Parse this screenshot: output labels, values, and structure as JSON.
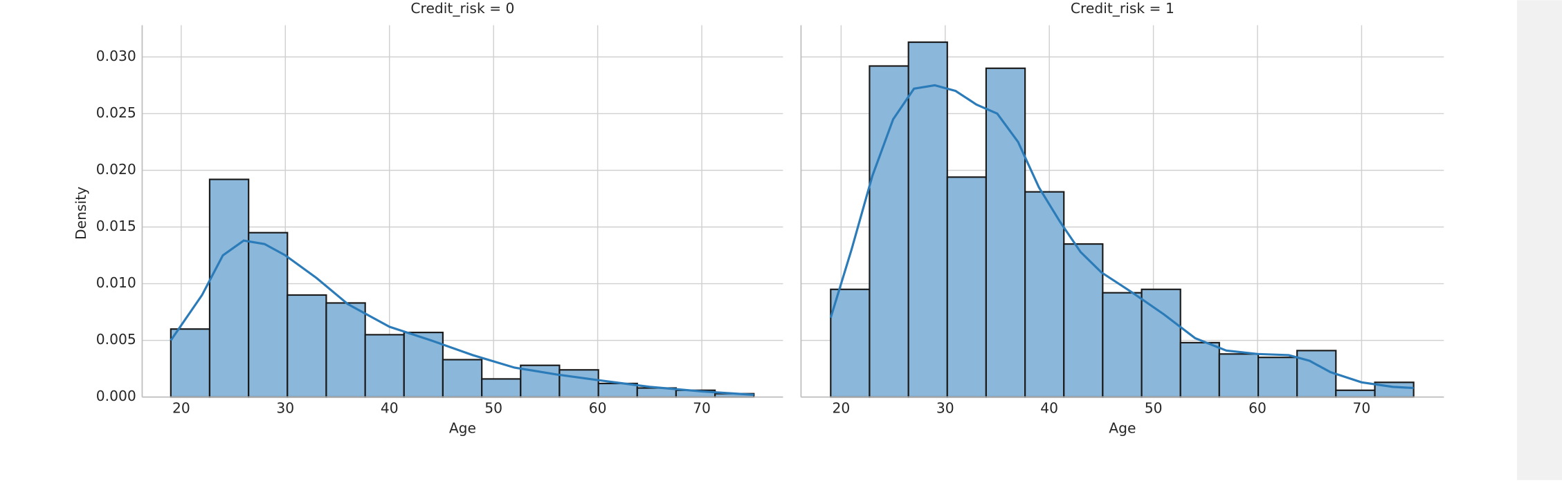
{
  "chart_data": [
    {
      "type": "histogram",
      "title": "Credit_risk = 0",
      "xlabel": "Age",
      "ylabel": "Density",
      "bins": [
        19,
        22.73,
        26.47,
        30.2,
        33.93,
        37.67,
        41.4,
        45.13,
        48.87,
        52.6,
        56.33,
        60.07,
        63.8,
        67.53,
        71.27,
        75
      ],
      "values": [
        0.006,
        0.0192,
        0.0145,
        0.009,
        0.0083,
        0.0055,
        0.0057,
        0.0033,
        0.0016,
        0.0028,
        0.0024,
        0.0012,
        0.0008,
        0.0006,
        0.0003
      ],
      "color": "#8ab7da",
      "edgecolor": "#1a1a1a",
      "kde": {
        "color": "#2b7bb9",
        "x": [
          19,
          22,
          24,
          26,
          28,
          30,
          33,
          36,
          40,
          44,
          48,
          52,
          56,
          60,
          65,
          70,
          75
        ],
        "values": [
          0.005,
          0.009,
          0.0125,
          0.0138,
          0.0135,
          0.0125,
          0.0105,
          0.0082,
          0.0062,
          0.005,
          0.0037,
          0.0026,
          0.002,
          0.0015,
          0.0009,
          0.0005,
          0.0002
        ]
      },
      "xlim": [
        16.25,
        77.8
      ],
      "xticks": [
        20,
        30,
        40,
        50,
        60,
        70
      ],
      "ylim": [
        0,
        0.0328
      ],
      "yticks": [
        {
          "value": 0,
          "label": "0.000"
        },
        {
          "value": 0.005,
          "label": "0.005"
        },
        {
          "value": 0.01,
          "label": "0.010"
        },
        {
          "value": 0.015,
          "label": "0.015"
        },
        {
          "value": 0.02,
          "label": "0.020"
        },
        {
          "value": 0.025,
          "label": "0.025"
        },
        {
          "value": 0.03,
          "label": "0.030"
        }
      ],
      "grid": true
    },
    {
      "type": "histogram",
      "title": "Credit_risk = 1",
      "xlabel": "Age",
      "bins": [
        19,
        22.73,
        26.47,
        30.2,
        33.93,
        37.67,
        41.4,
        45.13,
        48.87,
        52.6,
        56.33,
        60.07,
        63.8,
        67.53,
        71.27,
        75
      ],
      "values": [
        0.0095,
        0.0292,
        0.0313,
        0.0194,
        0.029,
        0.0181,
        0.0135,
        0.0092,
        0.0095,
        0.0048,
        0.0038,
        0.0035,
        0.0041,
        0.0006,
        0.0013
      ],
      "color": "#8ab7da",
      "edgecolor": "#1a1a1a",
      "kde": {
        "color": "#2b7bb9",
        "x": [
          19,
          21,
          23,
          25,
          27,
          29,
          31,
          33,
          35,
          37,
          39,
          41,
          43,
          45,
          48,
          51,
          54,
          57,
          60,
          63,
          65,
          67,
          70,
          73,
          75
        ],
        "values": [
          0.007,
          0.013,
          0.0195,
          0.0245,
          0.0272,
          0.0275,
          0.027,
          0.0258,
          0.025,
          0.0225,
          0.0185,
          0.0155,
          0.0128,
          0.011,
          0.0092,
          0.0073,
          0.0052,
          0.0041,
          0.0038,
          0.0037,
          0.0032,
          0.0022,
          0.0013,
          0.0009,
          0.0008
        ]
      },
      "xlim": [
        16.15,
        77.9
      ],
      "xticks": [
        20,
        30,
        40,
        50,
        60,
        70
      ],
      "grid": true
    }
  ]
}
